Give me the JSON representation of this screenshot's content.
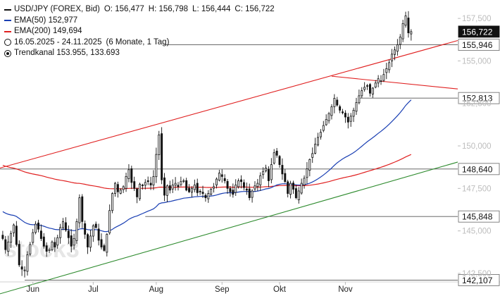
{
  "chart_data": {
    "type": "candlestick",
    "instrument": "USD/JPY (FOREX, Bid)",
    "ohlc": {
      "o": "156,477",
      "h": "156,798",
      "l": "156,444",
      "c": "156,722"
    },
    "ema50": {
      "label": "EMA(50)",
      "value": "152,977",
      "color": "#1a3fb3"
    },
    "ema200": {
      "label": "EMA(200)",
      "value": "149,694",
      "color": "#e02020"
    },
    "range": {
      "text": "16.05.2025 - 24.11.2025",
      "period": "(6 Monate, 1 Tag)"
    },
    "trend": {
      "label": "Trendkanal",
      "values": "153.955, 133.693",
      "color": "#e02020"
    },
    "support_line_color": "#2e8b2e",
    "ylim": [
      142000,
      158500
    ],
    "y_ticks": [
      {
        "value": 157500,
        "label": "157,500"
      },
      {
        "value": 155000,
        "label": "155,000"
      },
      {
        "value": 152500,
        "label": "152,500"
      },
      {
        "value": 150000,
        "label": "150,000"
      },
      {
        "value": 147500,
        "label": "147,500"
      },
      {
        "value": 145000,
        "label": "145,000"
      },
      {
        "value": 142500,
        "label": "142,500"
      }
    ],
    "x_ticks": [
      {
        "t": 11,
        "label": "Jun"
      },
      {
        "t": 33,
        "label": "Jul"
      },
      {
        "t": 56,
        "label": "Aug"
      },
      {
        "t": 80,
        "label": "Sep"
      },
      {
        "t": 101,
        "label": "Okt"
      },
      {
        "t": 125,
        "label": "Nov"
      }
    ],
    "levels": [
      {
        "value": 156722,
        "label": "156,722",
        "current": true
      },
      {
        "value": 155946,
        "label": "155,946",
        "t_from": 59
      },
      {
        "value": 152813,
        "label": "152,813",
        "t_from": 130
      },
      {
        "value": 148640,
        "label": "148,640",
        "t_from": -1
      },
      {
        "value": 145848,
        "label": "145,848",
        "t_from": 52
      },
      {
        "value": 142107,
        "label": "142,107",
        "t_from": 8
      }
    ],
    "trend_upper": {
      "t0": -1,
      "v0": 148700,
      "t1": 166,
      "v1": 156200
    },
    "trend_red2": {
      "t0": 120,
      "v0": 154100,
      "t1": 166,
      "v1": 153350
    },
    "trend_green": {
      "t0": -1,
      "v0": 141300,
      "t1": 166,
      "v1": 149050
    },
    "t_range": [
      -1,
      166
    ],
    "watermark": "stock3",
    "closes": [
      144.55,
      143.9,
      144.35,
      144.85,
      145.35,
      144.2,
      143.0,
      142.75,
      142.7,
      143.6,
      144.2,
      144.9,
      145.4,
      145.1,
      144.55,
      144.1,
      143.8,
      143.9,
      144.35,
      144.05,
      144.6,
      145.2,
      145.55,
      145.05,
      144.6,
      144.1,
      144.55,
      145.55,
      146.95,
      145.55,
      144.8,
      144.05,
      144.7,
      145.3,
      145.2,
      144.45,
      144.05,
      143.85,
      144.8,
      146.2,
      147.2,
      147.8,
      147.3,
      147.4,
      147.6,
      148.2,
      148.6,
      147.85,
      147.5,
      147.0,
      147.75,
      147.7,
      147.85,
      147.9,
      147.7,
      148.2,
      149.5,
      150.65,
      148.0,
      147.1,
      147.65,
      147.4,
      147.7,
      147.8,
      147.6,
      147.9,
      147.95,
      147.4,
      147.3,
      147.5,
      147.7,
      147.25,
      147.3,
      147.2,
      146.95,
      147.2,
      147.45,
      147.6,
      148.05,
      148.4,
      148.2,
      147.95,
      147.5,
      147.3,
      147.15,
      147.7,
      147.95,
      147.9,
      147.55,
      147.4,
      146.95,
      147.35,
      147.65,
      147.8,
      148.25,
      148.5,
      148.7,
      147.95,
      148.9,
      149.6,
      149.45,
      148.9,
      148.35,
      147.9,
      147.2,
      147.8,
      147.45,
      146.95,
      147.35,
      147.8,
      148.1,
      148.65,
      149.2,
      149.55,
      150.1,
      150.5,
      150.8,
      151.2,
      151.55,
      151.9,
      152.3,
      152.8,
      152.4,
      152.1,
      151.95,
      151.7,
      151.4,
      151.75,
      152.1,
      152.55,
      152.95,
      153.25,
      153.45,
      153.55,
      153.1,
      153.4,
      153.7,
      153.95,
      153.8,
      154.2,
      154.55,
      154.9,
      155.4,
      155.65,
      155.95,
      156.4,
      157.2,
      157.65,
      156.65,
      156.72
    ]
  }
}
